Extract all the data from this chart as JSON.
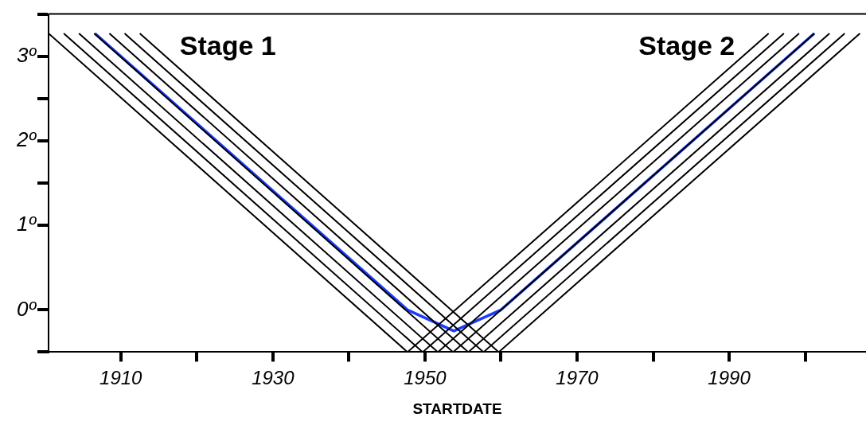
{
  "chart_data": {
    "type": "line",
    "xlabel": "STARTDATE",
    "annotations": [
      "Stage 1",
      "Stage 2"
    ],
    "xlim": [
      1900.5,
      2008
    ],
    "xticks": [
      1910,
      {
        "value": 1920,
        "label": null
      },
      1930,
      {
        "value": 1940,
        "label": null
      },
      1950,
      {
        "value": 1960,
        "label": null
      },
      1970,
      {
        "value": 1980,
        "label": null
      },
      1990,
      {
        "value": 2000,
        "label": null
      }
    ],
    "ylim": [
      -0.5,
      3.5
    ],
    "yticks": [
      {
        "value": -0.5,
        "label": null
      },
      {
        "value": 0,
        "label": "0º"
      },
      {
        "value": 1,
        "label": "1º"
      },
      {
        "value": 1.5,
        "label": null
      },
      {
        "value": 2,
        "label": "2º"
      },
      {
        "value": 2.5,
        "label": null
      },
      {
        "value": 3,
        "label": "3º"
      },
      {
        "value": 3.5,
        "label": null
      }
    ],
    "grid": false,
    "legend": false,
    "marker": "none",
    "line_style": "solid",
    "series": [
      {
        "color": "#000000",
        "x": [
          1900.5,
          1947.7,
          1995.2
        ],
        "values": [
          3.27,
          -0.5,
          3.27
        ]
      },
      {
        "color": "#000000",
        "x": [
          1902.5,
          1949.7,
          1997.2
        ],
        "values": [
          3.27,
          -0.5,
          3.27
        ]
      },
      {
        "color": "#000000",
        "x": [
          1904.5,
          1951.7,
          1999.2
        ],
        "values": [
          3.27,
          -0.5,
          3.27
        ]
      },
      {
        "color": "#000000",
        "x": [
          1906.5,
          1953.7,
          2001.2
        ],
        "values": [
          3.27,
          -0.5,
          3.27
        ]
      },
      {
        "color": "#000000",
        "x": [
          1908.5,
          1955.7,
          2003.2
        ],
        "values": [
          3.27,
          -0.5,
          3.27
        ]
      },
      {
        "color": "#000000",
        "x": [
          1910.5,
          1957.7,
          2005.2
        ],
        "values": [
          3.27,
          -0.5,
          3.27
        ]
      },
      {
        "color": "#000000",
        "x": [
          1912.5,
          1959.7,
          2007.2
        ],
        "values": [
          3.27,
          -0.5,
          3.27
        ]
      },
      {
        "color": "#1a3cff",
        "x": [
          1906.6,
          1947.7,
          1953.8,
          1960,
          2001.2
        ],
        "values": [
          3.27,
          0,
          -0.25,
          0,
          3.27
        ]
      }
    ]
  }
}
